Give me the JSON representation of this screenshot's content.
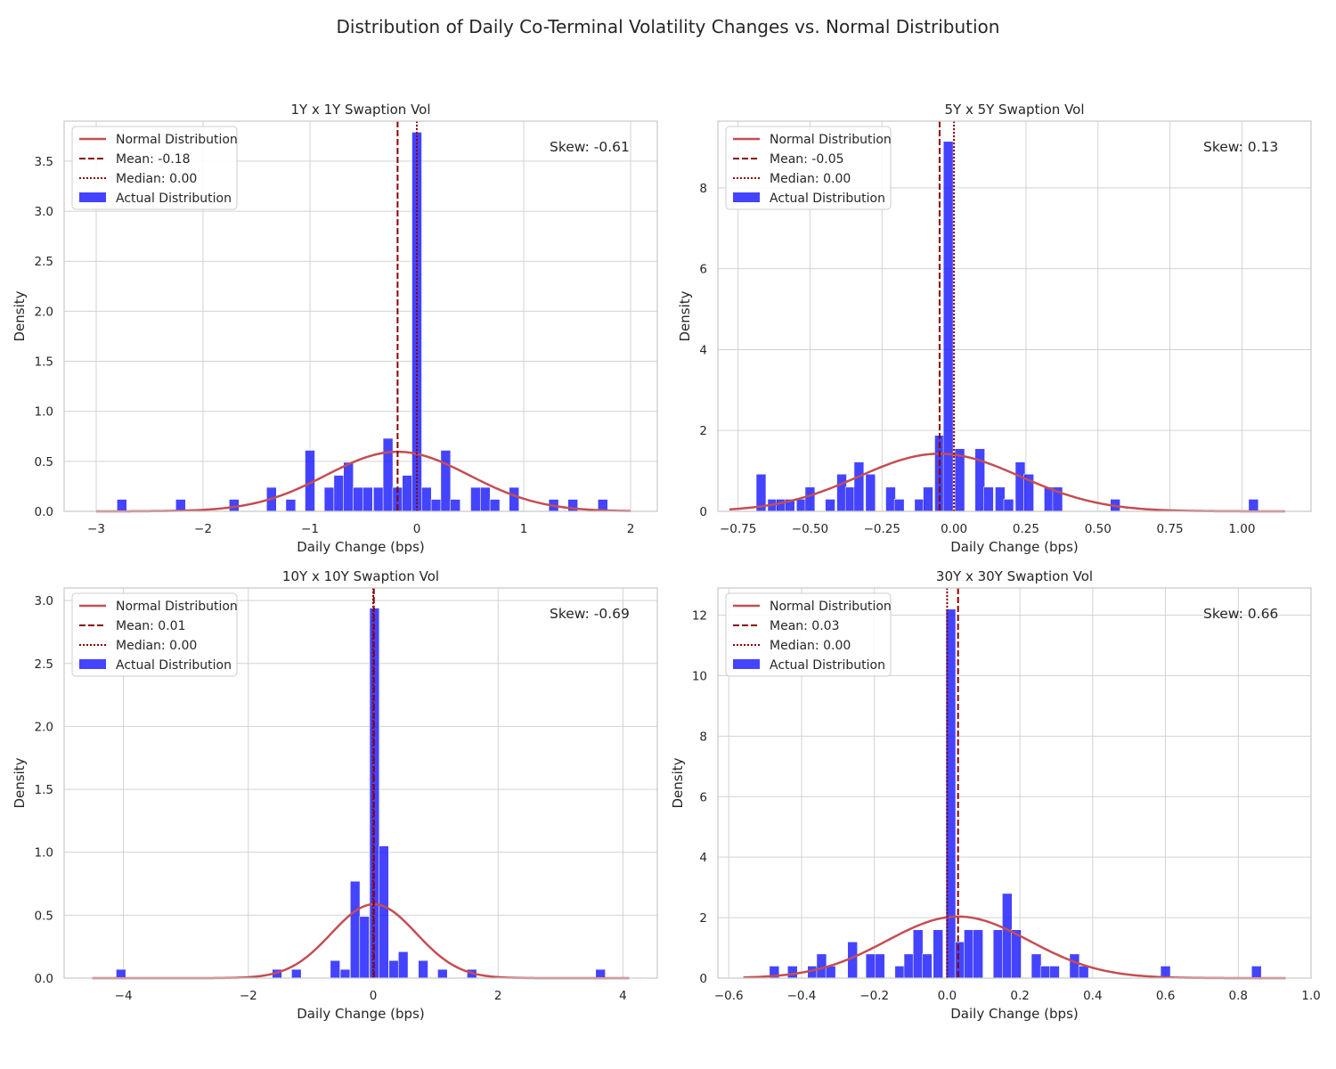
{
  "figure": {
    "title": "Distribution of Daily Co-Terminal Volatility Changes vs. Normal Distribution"
  },
  "style": {
    "bar_color": "#1515FF",
    "normal_color": "#C44E52",
    "mean_color": "#8B0000",
    "median_color": "#8B0000",
    "grid_color": "#D3D3D3"
  },
  "chart_data": [
    {
      "type": "bar",
      "title": "1Y x 1Y Swaption Vol",
      "xlabel": "Daily Change (bps)",
      "ylabel": "Density",
      "xlim": [
        -3.3,
        2.25
      ],
      "ylim": [
        0,
        3.9
      ],
      "xticks": [
        -3,
        -2,
        -1,
        0,
        1,
        2
      ],
      "yticks": [
        0.0,
        0.5,
        1.0,
        1.5,
        2.0,
        2.5,
        3.0,
        3.5
      ],
      "x_tick_labels": [
        "−3",
        "−2",
        "−1",
        "0",
        "1",
        "2"
      ],
      "y_tick_labels": [
        "0.0",
        "0.5",
        "1.0",
        "1.5",
        "2.0",
        "2.5",
        "3.0",
        "3.5"
      ],
      "grid": true,
      "legend_position": "top-left",
      "bin_width": 0.092,
      "bins": [
        {
          "x": -2.76,
          "density": 0.12
        },
        {
          "x": -2.21,
          "density": 0.12
        },
        {
          "x": -1.71,
          "density": 0.12
        },
        {
          "x": -1.36,
          "density": 0.24
        },
        {
          "x": -1.18,
          "density": 0.12
        },
        {
          "x": -1.0,
          "density": 0.61
        },
        {
          "x": -0.82,
          "density": 0.24
        },
        {
          "x": -0.73,
          "density": 0.36
        },
        {
          "x": -0.64,
          "density": 0.49
        },
        {
          "x": -0.55,
          "density": 0.24
        },
        {
          "x": -0.46,
          "density": 0.24
        },
        {
          "x": -0.36,
          "density": 0.24
        },
        {
          "x": -0.27,
          "density": 0.73
        },
        {
          "x": -0.18,
          "density": 0.24
        },
        {
          "x": -0.09,
          "density": 0.36
        },
        {
          "x": 0.0,
          "density": 3.79
        },
        {
          "x": 0.09,
          "density": 0.24
        },
        {
          "x": 0.18,
          "density": 0.12
        },
        {
          "x": 0.27,
          "density": 0.61
        },
        {
          "x": 0.36,
          "density": 0.12
        },
        {
          "x": 0.55,
          "density": 0.24
        },
        {
          "x": 0.64,
          "density": 0.24
        },
        {
          "x": 0.73,
          "density": 0.12
        },
        {
          "x": 0.91,
          "density": 0.24
        },
        {
          "x": 1.28,
          "density": 0.12
        },
        {
          "x": 1.46,
          "density": 0.12
        },
        {
          "x": 1.74,
          "density": 0.12
        }
      ],
      "normal": {
        "mean": -0.18,
        "std": 0.67,
        "x_range": [
          -3.0,
          2.0
        ]
      },
      "mean_line": -0.18,
      "median_line": 0.0,
      "legend": [
        "Normal Distribution",
        "Mean: -0.18",
        "Median: 0.00",
        "Actual Distribution"
      ],
      "annotation": "Skew: -0.61"
    },
    {
      "type": "bar",
      "title": "5Y x 5Y Swaption Vol",
      "xlabel": "Daily Change (bps)",
      "ylabel": "Density",
      "xlim": [
        -0.82,
        1.24
      ],
      "ylim": [
        0,
        9.65
      ],
      "xticks": [
        -0.75,
        -0.5,
        -0.25,
        0.0,
        0.25,
        0.5,
        0.75,
        1.0
      ],
      "yticks": [
        0,
        2,
        4,
        6,
        8
      ],
      "x_tick_labels": [
        "−0.75",
        "−0.50",
        "−0.25",
        "0.00",
        "0.25",
        "0.50",
        "0.75",
        "1.00"
      ],
      "y_tick_labels": [
        "0",
        "2",
        "4",
        "6",
        "8"
      ],
      "grid": true,
      "legend_position": "top-left",
      "bin_width": 0.034,
      "bins": [
        {
          "x": -0.67,
          "density": 0.92
        },
        {
          "x": -0.63,
          "density": 0.3
        },
        {
          "x": -0.6,
          "density": 0.3
        },
        {
          "x": -0.57,
          "density": 0.3
        },
        {
          "x": -0.53,
          "density": 0.3
        },
        {
          "x": -0.5,
          "density": 0.6
        },
        {
          "x": -0.43,
          "density": 0.3
        },
        {
          "x": -0.39,
          "density": 0.92
        },
        {
          "x": -0.36,
          "density": 0.6
        },
        {
          "x": -0.33,
          "density": 1.22
        },
        {
          "x": -0.29,
          "density": 0.92
        },
        {
          "x": -0.22,
          "density": 0.6
        },
        {
          "x": -0.19,
          "density": 0.3
        },
        {
          "x": -0.12,
          "density": 0.3
        },
        {
          "x": -0.09,
          "density": 0.6
        },
        {
          "x": -0.05,
          "density": 1.88
        },
        {
          "x": -0.02,
          "density": 9.15
        },
        {
          "x": 0.02,
          "density": 1.55
        },
        {
          "x": 0.09,
          "density": 1.55
        },
        {
          "x": 0.12,
          "density": 0.6
        },
        {
          "x": 0.16,
          "density": 0.6
        },
        {
          "x": 0.19,
          "density": 0.3
        },
        {
          "x": 0.23,
          "density": 1.22
        },
        {
          "x": 0.26,
          "density": 0.92
        },
        {
          "x": 0.33,
          "density": 0.6
        },
        {
          "x": 0.36,
          "density": 0.6
        },
        {
          "x": 0.56,
          "density": 0.3
        },
        {
          "x": 1.04,
          "density": 0.3
        }
      ],
      "normal": {
        "mean": -0.05,
        "std": 0.28,
        "x_range": [
          -0.78,
          1.15
        ]
      },
      "mean_line": -0.05,
      "median_line": 0.0,
      "legend": [
        "Normal Distribution",
        "Mean: -0.05",
        "Median: 0.00",
        "Actual Distribution"
      ],
      "annotation": "Skew: 0.13"
    },
    {
      "type": "bar",
      "title": "10Y x 10Y Swaption Vol",
      "xlabel": "Daily Change (bps)",
      "ylabel": "Density",
      "xlim": [
        -4.95,
        4.55
      ],
      "ylim": [
        0,
        3.1
      ],
      "xticks": [
        -4,
        -2,
        0,
        2,
        4
      ],
      "yticks": [
        0.0,
        0.5,
        1.0,
        1.5,
        2.0,
        2.5,
        3.0
      ],
      "x_tick_labels": [
        "−4",
        "−2",
        "0",
        "2",
        "4"
      ],
      "y_tick_labels": [
        "0.0",
        "0.5",
        "1.0",
        "1.5",
        "2.0",
        "2.5",
        "3.0"
      ],
      "grid": true,
      "legend_position": "top-left",
      "bin_width": 0.155,
      "bins": [
        {
          "x": -4.04,
          "density": 0.07
        },
        {
          "x": -1.54,
          "density": 0.07
        },
        {
          "x": -1.23,
          "density": 0.07
        },
        {
          "x": -0.61,
          "density": 0.14
        },
        {
          "x": -0.45,
          "density": 0.07
        },
        {
          "x": -0.29,
          "density": 0.77
        },
        {
          "x": -0.14,
          "density": 0.49
        },
        {
          "x": 0.02,
          "density": 2.94
        },
        {
          "x": 0.17,
          "density": 1.05
        },
        {
          "x": 0.33,
          "density": 0.14
        },
        {
          "x": 0.48,
          "density": 0.21
        },
        {
          "x": 0.8,
          "density": 0.14
        },
        {
          "x": 1.11,
          "density": 0.07
        },
        {
          "x": 1.58,
          "density": 0.07
        },
        {
          "x": 3.64,
          "density": 0.07
        }
      ],
      "normal": {
        "mean": 0.01,
        "std": 0.68,
        "x_range": [
          -4.5,
          4.1
        ]
      },
      "mean_line": 0.01,
      "median_line": 0.0,
      "legend": [
        "Normal Distribution",
        "Mean: 0.01",
        "Median: 0.00",
        "Actual Distribution"
      ],
      "annotation": "Skew: -0.69"
    },
    {
      "type": "bar",
      "title": "30Y x 30Y Swaption Vol",
      "xlabel": "Daily Change (bps)",
      "ylabel": "Density",
      "xlim": [
        -0.63,
        1.0
      ],
      "ylim": [
        0,
        12.9
      ],
      "xticks": [
        -0.6,
        -0.4,
        -0.2,
        0.0,
        0.2,
        0.4,
        0.6,
        0.8,
        1.0
      ],
      "yticks": [
        0,
        2,
        4,
        6,
        8,
        10,
        12
      ],
      "x_tick_labels": [
        "−0.6",
        "−0.4",
        "−0.2",
        "0.0",
        "0.2",
        "0.4",
        "0.6",
        "0.8",
        "1.0"
      ],
      "y_tick_labels": [
        "0",
        "2",
        "4",
        "6",
        "8",
        "10",
        "12"
      ],
      "grid": true,
      "legend_position": "top-left",
      "bin_width": 0.027,
      "bins": [
        {
          "x": -0.475,
          "density": 0.4
        },
        {
          "x": -0.425,
          "density": 0.4
        },
        {
          "x": -0.37,
          "density": 0.4
        },
        {
          "x": -0.345,
          "density": 0.8
        },
        {
          "x": -0.32,
          "density": 0.4
        },
        {
          "x": -0.26,
          "density": 1.2
        },
        {
          "x": -0.21,
          "density": 0.8
        },
        {
          "x": -0.185,
          "density": 0.8
        },
        {
          "x": -0.13,
          "density": 0.4
        },
        {
          "x": -0.105,
          "density": 0.8
        },
        {
          "x": -0.08,
          "density": 1.6
        },
        {
          "x": -0.055,
          "density": 0.8
        },
        {
          "x": -0.025,
          "density": 1.6
        },
        {
          "x": 0.01,
          "density": 12.2
        },
        {
          "x": 0.035,
          "density": 1.2
        },
        {
          "x": 0.06,
          "density": 1.6
        },
        {
          "x": 0.085,
          "density": 1.6
        },
        {
          "x": 0.14,
          "density": 1.6
        },
        {
          "x": 0.165,
          "density": 2.8
        },
        {
          "x": 0.19,
          "density": 1.6
        },
        {
          "x": 0.245,
          "density": 0.8
        },
        {
          "x": 0.27,
          "density": 0.4
        },
        {
          "x": 0.295,
          "density": 0.4
        },
        {
          "x": 0.35,
          "density": 0.8
        },
        {
          "x": 0.375,
          "density": 0.4
        },
        {
          "x": 0.6,
          "density": 0.4
        },
        {
          "x": 0.85,
          "density": 0.4
        }
      ],
      "normal": {
        "mean": 0.03,
        "std": 0.196,
        "x_range": [
          -0.56,
          0.93
        ]
      },
      "mean_line": 0.03,
      "median_line": 0.0,
      "legend": [
        "Normal Distribution",
        "Mean: 0.03",
        "Median: 0.00",
        "Actual Distribution"
      ],
      "annotation": "Skew: 0.66"
    }
  ]
}
